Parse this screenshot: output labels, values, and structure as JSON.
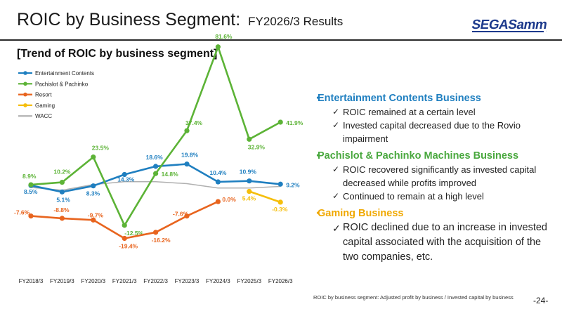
{
  "header": {
    "title": "ROIC by Business Segment:",
    "subtitle": "FY2026/3 Results",
    "logo_text": "SEGASammy"
  },
  "section_title": "[Trend of ROIC by business segment]",
  "chart_data": {
    "type": "line",
    "x": [
      "FY2018/3",
      "FY2019/3",
      "FY2020/3",
      "FY2021/3",
      "FY2022/3",
      "FY2023/3",
      "FY2024/3",
      "FY2025/3",
      "FY2026/3"
    ],
    "series": [
      {
        "name": "Entertainment Contents",
        "color": "#1f7fc0",
        "values": [
          8.5,
          5.1,
          8.3,
          14.3,
          18.6,
          19.8,
          10.4,
          10.9,
          9.2
        ],
        "labels": [
          "8.5%",
          "5.1%",
          "8.3%",
          "14.3%",
          "18.6%",
          "19.8%",
          "10.4%",
          "10.9%",
          "9.2%"
        ]
      },
      {
        "name": "Pachislot & Pachinko",
        "color": "#5cb336",
        "values": [
          8.9,
          10.2,
          23.5,
          -12.5,
          14.8,
          37.4,
          81.6,
          32.9,
          41.9
        ],
        "labels": [
          "8.9%",
          "10.2%",
          "23.5%",
          "-12.5%",
          "14.8%",
          "37.4%",
          "81.6%",
          "32.9%",
          "41.9%"
        ]
      },
      {
        "name": "Resort",
        "color": "#e8641e",
        "values": [
          -7.6,
          -8.8,
          -9.7,
          -19.4,
          -16.2,
          -7.6,
          0.0,
          null,
          null
        ],
        "labels": [
          "-7.6%",
          "-8.8%",
          "-9.7%",
          "-19.4%",
          "-16.2%",
          "-7.6%",
          "0.0%",
          "",
          ""
        ]
      },
      {
        "name": "Gaming",
        "color": "#f5be0a",
        "values": [
          null,
          null,
          null,
          null,
          null,
          null,
          null,
          5.4,
          -0.3
        ],
        "labels": [
          "",
          "",
          "",
          "",
          "",
          "",
          "",
          "5.4%",
          "-0.3%"
        ]
      },
      {
        "name": "WACC",
        "color": "#b0b0b0",
        "values": [
          7.5,
          6.0,
          9.0,
          10.5,
          10.5,
          9.5,
          7.2,
          7.2,
          8.0
        ],
        "labels": [
          "",
          "",
          "",
          "",
          "",
          "",
          "",
          "",
          ""
        ]
      }
    ],
    "ylim": [
      -25,
      90
    ],
    "grid": false,
    "legend": "top-left"
  },
  "bullets": [
    {
      "heading": "Entertainment Contents Business",
      "color": "blue",
      "items": [
        "ROIC remained at a certain level",
        "Invested capital decreased due to the Rovio impairment"
      ]
    },
    {
      "heading": "Pachislot & Pachinko Machines Business",
      "color": "green",
      "items": [
        "ROIC recovered significantly as invested capital decreased while profits improved",
        "Continued to remain at a high level"
      ]
    },
    {
      "heading": "Gaming Business",
      "color": "orange",
      "items": [
        "ROIC declined due to an increase in invested capital associated with the acquisition of the two companies, etc."
      ]
    }
  ],
  "footnote": "ROIC by business segment: Adjusted profit by business / Invested capital by business",
  "page_number": "-24-"
}
